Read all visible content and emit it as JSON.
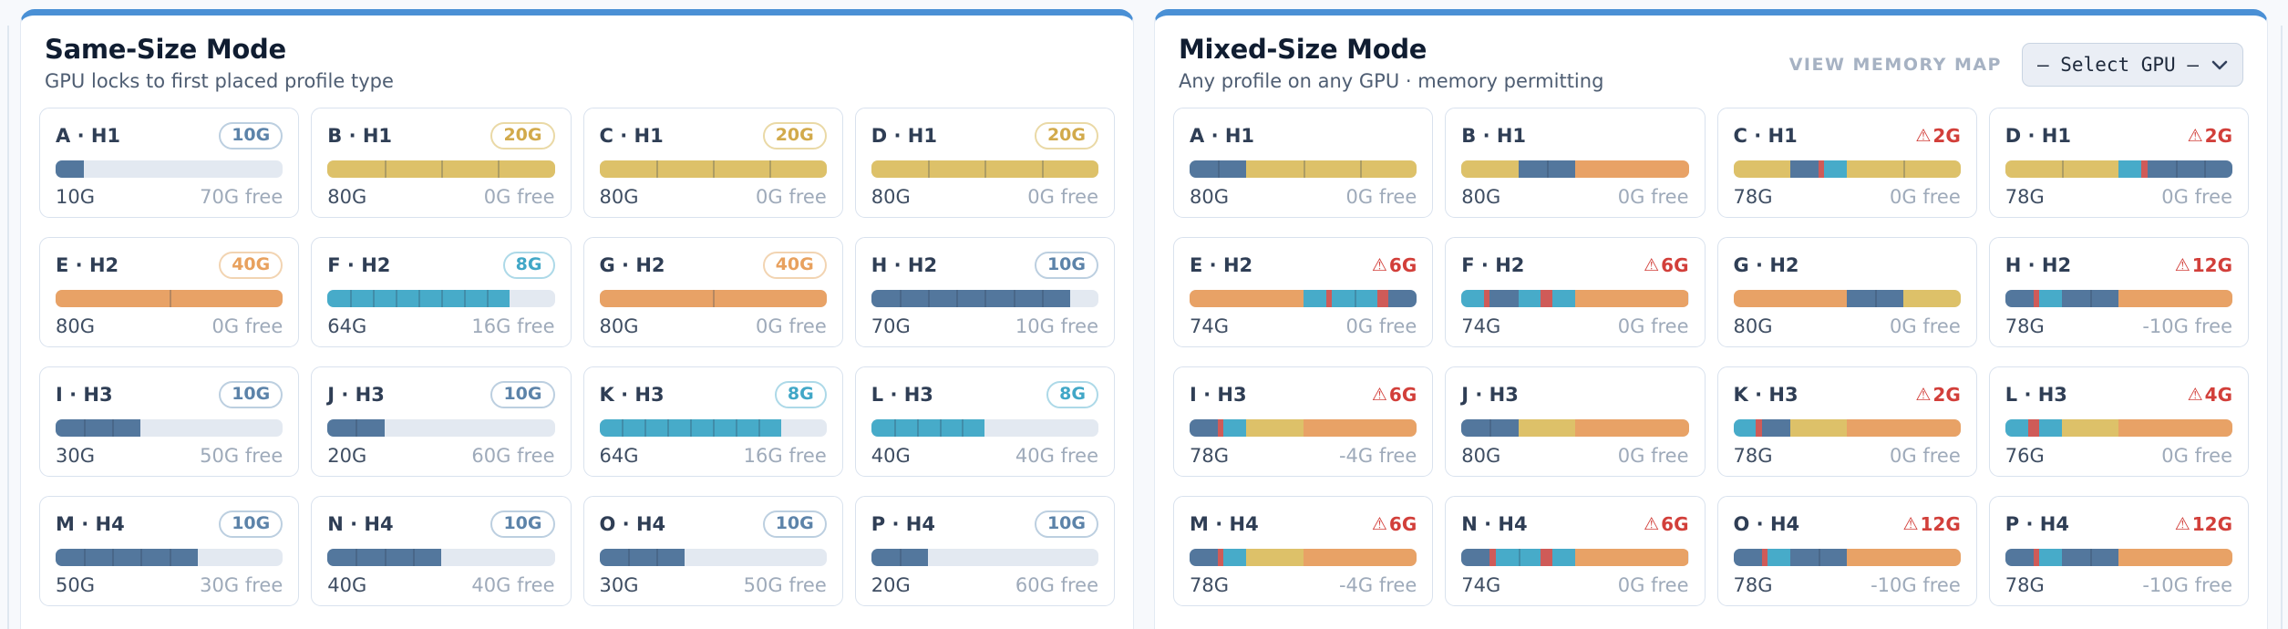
{
  "colors": {
    "accent_top": "#4a90d5",
    "blue": "#53779d",
    "gold": "#ddc169",
    "orange": "#e8a266",
    "cyan": "#47abc9",
    "red": "#cf5b58",
    "track": "#e3e9f1",
    "warn_text": "#d23f3a"
  },
  "icons": {
    "warning": "⚠",
    "chevron_down": "chevron-down"
  },
  "capacity_g": 80,
  "panels": [
    {
      "title": "Same-Size Mode",
      "subtitle": "GPU locks to first placed profile type",
      "cards": [
        {
          "label": "A · H1",
          "badge": {
            "type": "blue",
            "text": "10G"
          },
          "segments": [
            [
              "blue",
              10
            ]
          ],
          "used": "10G",
          "free": "70G free"
        },
        {
          "label": "B · H1",
          "badge": {
            "type": "gold",
            "text": "20G"
          },
          "segments": [
            [
              "gold",
              20
            ],
            [
              "gold",
              20
            ],
            [
              "gold",
              20
            ],
            [
              "gold",
              20
            ]
          ],
          "used": "80G",
          "free": "0G free"
        },
        {
          "label": "C · H1",
          "badge": {
            "type": "gold",
            "text": "20G"
          },
          "segments": [
            [
              "gold",
              20
            ],
            [
              "gold",
              20
            ],
            [
              "gold",
              20
            ],
            [
              "gold",
              20
            ]
          ],
          "used": "80G",
          "free": "0G free"
        },
        {
          "label": "D · H1",
          "badge": {
            "type": "gold",
            "text": "20G"
          },
          "segments": [
            [
              "gold",
              20
            ],
            [
              "gold",
              20
            ],
            [
              "gold",
              20
            ],
            [
              "gold",
              20
            ]
          ],
          "used": "80G",
          "free": "0G free"
        },
        {
          "label": "E · H2",
          "badge": {
            "type": "orange",
            "text": "40G"
          },
          "segments": [
            [
              "orange",
              40
            ],
            [
              "orange",
              40
            ]
          ],
          "used": "80G",
          "free": "0G free"
        },
        {
          "label": "F · H2",
          "badge": {
            "type": "cyan",
            "text": "8G"
          },
          "segments": [
            [
              "cyan",
              8
            ],
            [
              "cyan",
              8
            ],
            [
              "cyan",
              8
            ],
            [
              "cyan",
              8
            ],
            [
              "cyan",
              8
            ],
            [
              "cyan",
              8
            ],
            [
              "cyan",
              8
            ],
            [
              "cyan",
              8
            ]
          ],
          "used": "64G",
          "free": "16G free"
        },
        {
          "label": "G · H2",
          "badge": {
            "type": "orange",
            "text": "40G"
          },
          "segments": [
            [
              "orange",
              40
            ],
            [
              "orange",
              40
            ]
          ],
          "used": "80G",
          "free": "0G free"
        },
        {
          "label": "H · H2",
          "badge": {
            "type": "blue",
            "text": "10G"
          },
          "segments": [
            [
              "blue",
              10
            ],
            [
              "blue",
              10
            ],
            [
              "blue",
              10
            ],
            [
              "blue",
              10
            ],
            [
              "blue",
              10
            ],
            [
              "blue",
              10
            ],
            [
              "blue",
              10
            ]
          ],
          "used": "70G",
          "free": "10G free"
        },
        {
          "label": "I · H3",
          "badge": {
            "type": "blue",
            "text": "10G"
          },
          "segments": [
            [
              "blue",
              10
            ],
            [
              "blue",
              10
            ],
            [
              "blue",
              10
            ]
          ],
          "used": "30G",
          "free": "50G free"
        },
        {
          "label": "J · H3",
          "badge": {
            "type": "blue",
            "text": "10G"
          },
          "segments": [
            [
              "blue",
              10
            ],
            [
              "blue",
              10
            ]
          ],
          "used": "20G",
          "free": "60G free"
        },
        {
          "label": "K · H3",
          "badge": {
            "type": "cyan",
            "text": "8G"
          },
          "segments": [
            [
              "cyan",
              8
            ],
            [
              "cyan",
              8
            ],
            [
              "cyan",
              8
            ],
            [
              "cyan",
              8
            ],
            [
              "cyan",
              8
            ],
            [
              "cyan",
              8
            ],
            [
              "cyan",
              8
            ],
            [
              "cyan",
              8
            ]
          ],
          "used": "64G",
          "free": "16G free"
        },
        {
          "label": "L · H3",
          "badge": {
            "type": "cyan",
            "text": "8G"
          },
          "segments": [
            [
              "cyan",
              8
            ],
            [
              "cyan",
              8
            ],
            [
              "cyan",
              8
            ],
            [
              "cyan",
              8
            ],
            [
              "cyan",
              8
            ]
          ],
          "used": "40G",
          "free": "40G free"
        },
        {
          "label": "M · H4",
          "badge": {
            "type": "blue",
            "text": "10G"
          },
          "segments": [
            [
              "blue",
              10
            ],
            [
              "blue",
              10
            ],
            [
              "blue",
              10
            ],
            [
              "blue",
              10
            ],
            [
              "blue",
              10
            ]
          ],
          "used": "50G",
          "free": "30G free"
        },
        {
          "label": "N · H4",
          "badge": {
            "type": "blue",
            "text": "10G"
          },
          "segments": [
            [
              "blue",
              10
            ],
            [
              "blue",
              10
            ],
            [
              "blue",
              10
            ],
            [
              "blue",
              10
            ]
          ],
          "used": "40G",
          "free": "40G free"
        },
        {
          "label": "O · H4",
          "badge": {
            "type": "blue",
            "text": "10G"
          },
          "segments": [
            [
              "blue",
              10
            ],
            [
              "blue",
              10
            ],
            [
              "blue",
              10
            ]
          ],
          "used": "30G",
          "free": "50G free"
        },
        {
          "label": "P · H4",
          "badge": {
            "type": "blue",
            "text": "10G"
          },
          "segments": [
            [
              "blue",
              10
            ],
            [
              "blue",
              10
            ]
          ],
          "used": "20G",
          "free": "60G free"
        }
      ]
    },
    {
      "title": "Mixed-Size Mode",
      "subtitle": "Any profile on any GPU · memory permitting",
      "memmap_label": "VIEW MEMORY MAP",
      "select": {
        "value": "– Select GPU –"
      },
      "cards": [
        {
          "label": "A · H1",
          "badge": null,
          "segments": [
            [
              "blue",
              10
            ],
            [
              "blue",
              10
            ],
            [
              "gold",
              20
            ],
            [
              "gold",
              20
            ],
            [
              "gold",
              20
            ]
          ],
          "used": "80G",
          "free": "0G free"
        },
        {
          "label": "B · H1",
          "badge": null,
          "segments": [
            [
              "gold",
              20
            ],
            [
              "blue",
              10
            ],
            [
              "blue",
              10
            ],
            [
              "orange",
              40
            ]
          ],
          "used": "80G",
          "free": "0G free"
        },
        {
          "label": "C · H1",
          "badge": {
            "type": "warn",
            "text": "2G"
          },
          "segments": [
            [
              "gold",
              20
            ],
            [
              "blue",
              10
            ],
            [
              "red",
              2
            ],
            [
              "cyan",
              8
            ],
            [
              "gold",
              20
            ],
            [
              "gold",
              20
            ]
          ],
          "used": "78G",
          "free": "0G free"
        },
        {
          "label": "D · H1",
          "badge": {
            "type": "warn",
            "text": "2G"
          },
          "segments": [
            [
              "gold",
              20
            ],
            [
              "gold",
              20
            ],
            [
              "cyan",
              8
            ],
            [
              "red",
              2
            ],
            [
              "blue",
              10
            ],
            [
              "blue",
              10
            ],
            [
              "blue",
              10
            ]
          ],
          "used": "78G",
          "free": "0G free"
        },
        {
          "label": "E · H2",
          "badge": {
            "type": "warn",
            "text": "6G"
          },
          "segments": [
            [
              "orange",
              40
            ],
            [
              "cyan",
              8
            ],
            [
              "red",
              2
            ],
            [
              "cyan",
              8
            ],
            [
              "cyan",
              8
            ],
            [
              "red",
              4
            ],
            [
              "blue",
              10
            ]
          ],
          "used": "74G",
          "free": "0G free"
        },
        {
          "label": "F · H2",
          "badge": {
            "type": "warn",
            "text": "6G"
          },
          "segments": [
            [
              "cyan",
              8
            ],
            [
              "red",
              2
            ],
            [
              "blue",
              10
            ],
            [
              "cyan",
              8
            ],
            [
              "red",
              4
            ],
            [
              "cyan",
              8
            ],
            [
              "orange",
              40
            ]
          ],
          "used": "74G",
          "free": "0G free"
        },
        {
          "label": "G · H2",
          "badge": null,
          "segments": [
            [
              "orange",
              40
            ],
            [
              "blue",
              10
            ],
            [
              "blue",
              10
            ],
            [
              "gold",
              20
            ]
          ],
          "used": "80G",
          "free": "0G free"
        },
        {
          "label": "H · H2",
          "badge": {
            "type": "warn",
            "text": "12G"
          },
          "segments": [
            [
              "blue",
              10
            ],
            [
              "red",
              2
            ],
            [
              "cyan",
              8
            ],
            [
              "blue",
              10
            ],
            [
              "blue",
              10
            ],
            [
              "orange",
              40
            ]
          ],
          "used": "78G",
          "free": "-10G free"
        },
        {
          "label": "I · H3",
          "badge": {
            "type": "warn",
            "text": "6G"
          },
          "segments": [
            [
              "blue",
              10
            ],
            [
              "red",
              2
            ],
            [
              "cyan",
              8
            ],
            [
              "gold",
              20
            ],
            [
              "orange",
              40
            ]
          ],
          "used": "78G",
          "free": "-4G free"
        },
        {
          "label": "J · H3",
          "badge": null,
          "segments": [
            [
              "blue",
              10
            ],
            [
              "blue",
              10
            ],
            [
              "gold",
              20
            ],
            [
              "orange",
              40
            ]
          ],
          "used": "80G",
          "free": "0G free"
        },
        {
          "label": "K · H3",
          "badge": {
            "type": "warn",
            "text": "2G"
          },
          "segments": [
            [
              "cyan",
              8
            ],
            [
              "red",
              2
            ],
            [
              "blue",
              10
            ],
            [
              "gold",
              20
            ],
            [
              "orange",
              40
            ]
          ],
          "used": "78G",
          "free": "0G free"
        },
        {
          "label": "L · H3",
          "badge": {
            "type": "warn",
            "text": "4G"
          },
          "segments": [
            [
              "cyan",
              8
            ],
            [
              "red",
              4
            ],
            [
              "cyan",
              8
            ],
            [
              "gold",
              20
            ],
            [
              "orange",
              40
            ]
          ],
          "used": "76G",
          "free": "0G free"
        },
        {
          "label": "M · H4",
          "badge": {
            "type": "warn",
            "text": "6G"
          },
          "segments": [
            [
              "blue",
              10
            ],
            [
              "red",
              2
            ],
            [
              "cyan",
              8
            ],
            [
              "gold",
              20
            ],
            [
              "orange",
              40
            ]
          ],
          "used": "78G",
          "free": "-4G free"
        },
        {
          "label": "N · H4",
          "badge": {
            "type": "warn",
            "text": "6G"
          },
          "segments": [
            [
              "blue",
              10
            ],
            [
              "red",
              2
            ],
            [
              "cyan",
              8
            ],
            [
              "cyan",
              8
            ],
            [
              "red",
              4
            ],
            [
              "cyan",
              8
            ],
            [
              "orange",
              40
            ]
          ],
          "used": "74G",
          "free": "0G free"
        },
        {
          "label": "O · H4",
          "badge": {
            "type": "warn",
            "text": "12G"
          },
          "segments": [
            [
              "blue",
              10
            ],
            [
              "red",
              2
            ],
            [
              "cyan",
              8
            ],
            [
              "blue",
              10
            ],
            [
              "blue",
              10
            ],
            [
              "orange",
              40
            ]
          ],
          "used": "78G",
          "free": "-10G free"
        },
        {
          "label": "P · H4",
          "badge": {
            "type": "warn",
            "text": "12G"
          },
          "segments": [
            [
              "blue",
              10
            ],
            [
              "red",
              2
            ],
            [
              "cyan",
              8
            ],
            [
              "blue",
              10
            ],
            [
              "blue",
              10
            ],
            [
              "orange",
              40
            ]
          ],
          "used": "78G",
          "free": "-10G free"
        }
      ]
    }
  ]
}
